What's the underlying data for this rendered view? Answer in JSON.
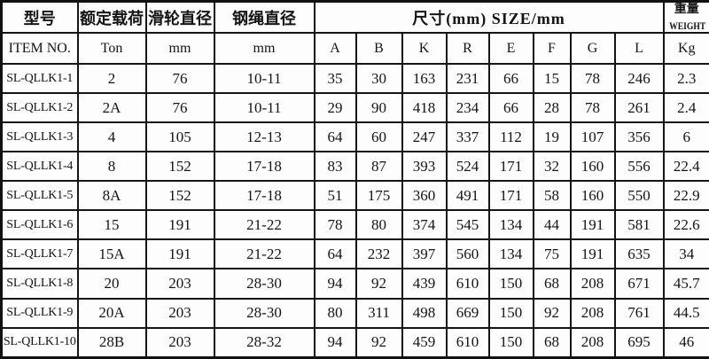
{
  "table": {
    "header_row1": {
      "col_model": "型号",
      "col_rated_load": "额定载荷",
      "col_sheave_dia": "滑轮直径",
      "col_rope_dia": "钢绳直径",
      "col_size": "尺寸(mm) SIZE/mm",
      "col_weight_cn": "重量",
      "col_weight_en": "WEIGHT"
    },
    "header_row2": [
      "ITEM NO.",
      "Ton",
      "mm",
      "mm",
      "A",
      "B",
      "K",
      "R",
      "E",
      "F",
      "G",
      "L",
      "Kg"
    ],
    "rows": [
      [
        "SL-QLLK1-1",
        "2",
        "76",
        "10-11",
        "35",
        "30",
        "163",
        "231",
        "66",
        "15",
        "78",
        "246",
        "2.3"
      ],
      [
        "SL-QLLK1-2",
        "2A",
        "76",
        "10-11",
        "29",
        "90",
        "418",
        "234",
        "66",
        "28",
        "78",
        "261",
        "2.4"
      ],
      [
        "SL-QLLK1-3",
        "4",
        "105",
        "12-13",
        "64",
        "60",
        "247",
        "337",
        "112",
        "19",
        "107",
        "356",
        "6"
      ],
      [
        "SL-QLLK1-4",
        "8",
        "152",
        "17-18",
        "83",
        "87",
        "393",
        "524",
        "171",
        "32",
        "160",
        "556",
        "22.4"
      ],
      [
        "SL-QLLK1-5",
        "8A",
        "152",
        "17-18",
        "51",
        "175",
        "360",
        "491",
        "171",
        "58",
        "160",
        "550",
        "22.9"
      ],
      [
        "SL-QLLK1-6",
        "15",
        "191",
        "21-22",
        "78",
        "80",
        "374",
        "545",
        "134",
        "44",
        "191",
        "581",
        "22.6"
      ],
      [
        "SL-QLLK1-7",
        "15A",
        "191",
        "21-22",
        "64",
        "232",
        "397",
        "560",
        "134",
        "75",
        "191",
        "635",
        "34"
      ],
      [
        "SL-QLLK1-8",
        "20",
        "203",
        "28-30",
        "94",
        "92",
        "439",
        "610",
        "150",
        "68",
        "208",
        "671",
        "45.7"
      ],
      [
        "SL-QLLK1-9",
        "20A",
        "203",
        "28-30",
        "80",
        "311",
        "498",
        "669",
        "150",
        "92",
        "208",
        "761",
        "44.5"
      ],
      [
        "SL-QLLK1-10",
        "28B",
        "203",
        "28-32",
        "94",
        "92",
        "459",
        "610",
        "150",
        "68",
        "208",
        "695",
        "46"
      ]
    ]
  }
}
